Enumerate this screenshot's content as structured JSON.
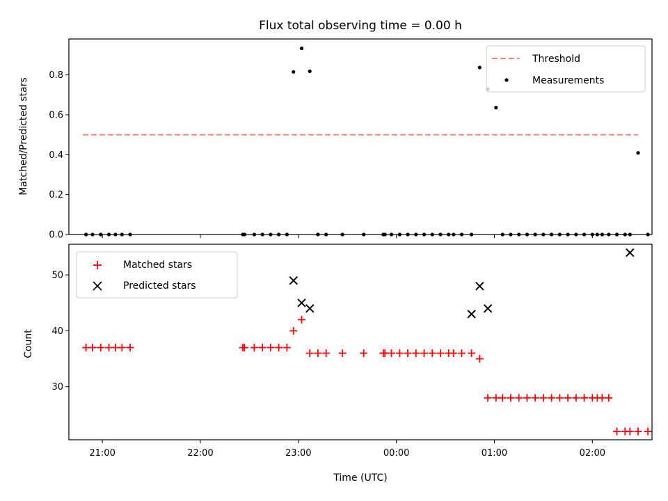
{
  "chart_data": [
    {
      "type": "scatter",
      "title": "Flux total observing time = 0.00 h",
      "xlabel": "",
      "ylabel": "Matched/Predicted stars",
      "xlim": [
        -20.5,
        336.5
      ],
      "ylim": [
        0,
        0.98
      ],
      "y_ticks": [
        "0.0",
        "0.2",
        "0.4",
        "0.6",
        "0.8"
      ],
      "grid": false,
      "legend_position": "top-right",
      "threshold": {
        "name": "Threshold",
        "color": "#ff7f7f",
        "x": [
          -12,
          328
        ],
        "y": 0.5
      },
      "series": [
        {
          "name": "Measurements",
          "color": "#000000",
          "x": [
            -10,
            -6,
            -1,
            4,
            8,
            12,
            17,
            86,
            87,
            93,
            98,
            103,
            108,
            113,
            117,
            122,
            127,
            132,
            137,
            147,
            160,
            172,
            173,
            177,
            182,
            187,
            192,
            197,
            202,
            207,
            212,
            215,
            220,
            226,
            231,
            236,
            241,
            245,
            250,
            255,
            260,
            265,
            270,
            275,
            280,
            285,
            290,
            295,
            300,
            303,
            306,
            310,
            315,
            320,
            323,
            328,
            334
          ],
          "y": [
            0,
            0,
            0,
            0,
            0,
            0,
            0,
            0,
            0,
            0,
            0,
            0,
            0,
            0,
            0.815,
            0.933,
            0.818,
            0,
            0,
            0,
            0,
            0,
            0,
            0,
            0,
            0,
            0,
            0,
            0,
            0,
            0,
            0,
            0,
            0,
            0.837,
            0.729,
            0.636,
            0,
            0,
            0,
            0,
            0,
            0,
            0,
            0,
            0,
            0,
            0,
            0,
            0,
            0,
            0,
            0,
            0,
            0,
            0.409,
            0
          ]
        }
      ]
    },
    {
      "type": "scatter",
      "title": "",
      "xlabel": "Time (UTC)",
      "ylabel": "Count",
      "xlim": [
        -20.5,
        336.5
      ],
      "ylim": [
        20.5,
        55.5
      ],
      "x_ticks": [
        "21:00",
        "22:00",
        "23:00",
        "00:00",
        "01:00",
        "02:00"
      ],
      "x_tick_values": [
        0,
        60,
        120,
        180,
        240,
        300
      ],
      "y_ticks": [
        "30",
        "40",
        "50"
      ],
      "grid": false,
      "legend_position": "top-left",
      "series": [
        {
          "name": "Matched stars",
          "marker": "plus",
          "color": "#ff0000",
          "x": [
            -10,
            -6,
            -1,
            4,
            8,
            12,
            17,
            86,
            87,
            93,
            98,
            103,
            108,
            113,
            117,
            122,
            127,
            132,
            137,
            147,
            160,
            172,
            173,
            177,
            182,
            187,
            192,
            197,
            202,
            207,
            212,
            215,
            220,
            226,
            231,
            236,
            241,
            245,
            250,
            255,
            260,
            265,
            270,
            275,
            280,
            285,
            290,
            295,
            300,
            303,
            306,
            310,
            315,
            320,
            323,
            328,
            334
          ],
          "y": [
            37,
            37,
            37,
            37,
            37,
            37,
            37,
            37,
            37,
            37,
            37,
            37,
            37,
            37,
            40,
            42,
            36,
            36,
            36,
            36,
            36,
            36,
            36,
            36,
            36,
            36,
            36,
            36,
            36,
            36,
            36,
            36,
            36,
            36,
            35,
            28,
            28,
            28,
            28,
            28,
            28,
            28,
            28,
            28,
            28,
            28,
            28,
            28,
            28,
            28,
            28,
            28,
            22,
            22,
            22,
            22,
            22
          ]
        },
        {
          "name": "Predicted stars",
          "marker": "x",
          "color": "#000000",
          "x": [
            117,
            122,
            127,
            226,
            231,
            236,
            323
          ],
          "y": [
            49,
            45,
            44,
            43,
            48,
            44,
            54
          ]
        }
      ]
    }
  ]
}
